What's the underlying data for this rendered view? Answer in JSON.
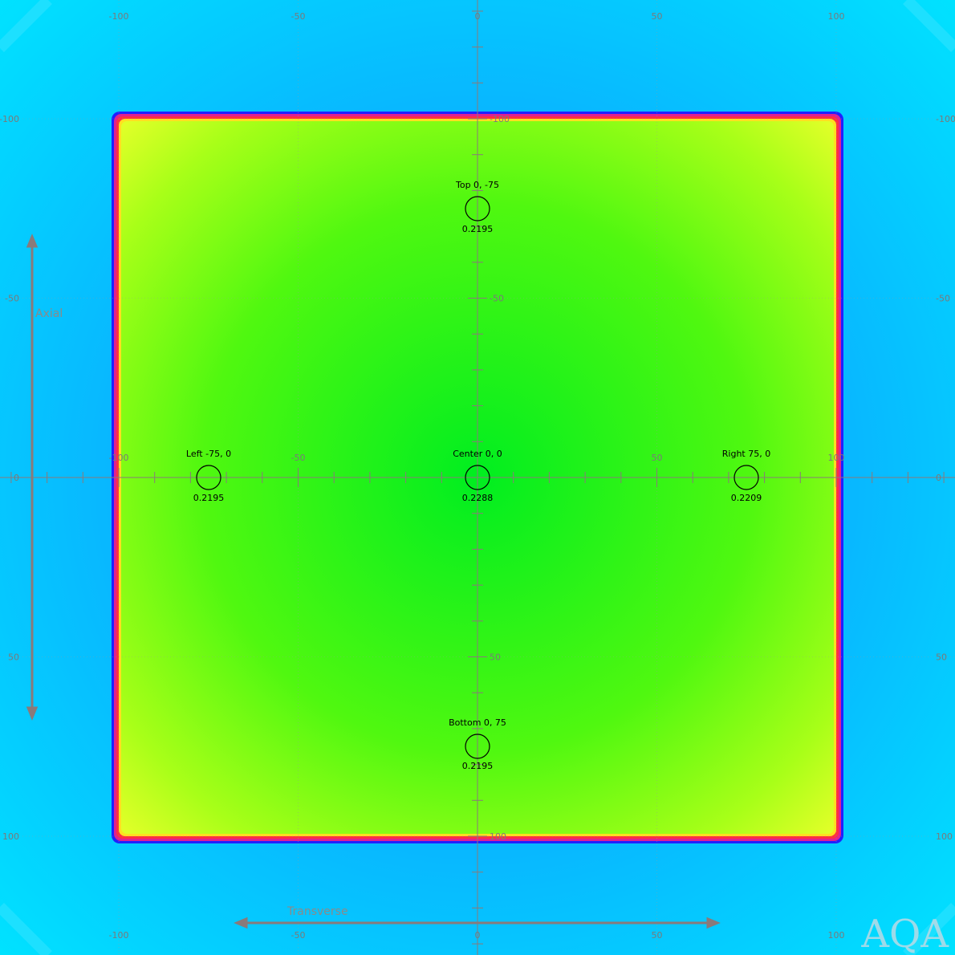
{
  "image": {
    "watermark": "AQA",
    "axis_titles": {
      "vertical": "Axial",
      "horizontal": "Transverse"
    },
    "tick_labels": [
      "-100",
      "-50",
      "0",
      "50",
      "100"
    ],
    "colors": {
      "outer_background": "#00c8ff",
      "field_center": "#00ee20",
      "field_edge": "#d8ff20",
      "rim_red": "#ff2050",
      "rim_blue": "#2020ff",
      "grid_line": "#8a8a8a",
      "arrow": "#8a7a7a"
    },
    "measurement_points": [
      {
        "label": "Top 0, -75",
        "value": "0.2195"
      },
      {
        "label": "Left -75, 0",
        "value": "0.2195"
      },
      {
        "label": "Center 0, 0",
        "value": "0.2288"
      },
      {
        "label": "Right 75, 0",
        "value": "0.2209"
      },
      {
        "label": "Bottom 0, 75",
        "value": "0.2195"
      }
    ]
  }
}
